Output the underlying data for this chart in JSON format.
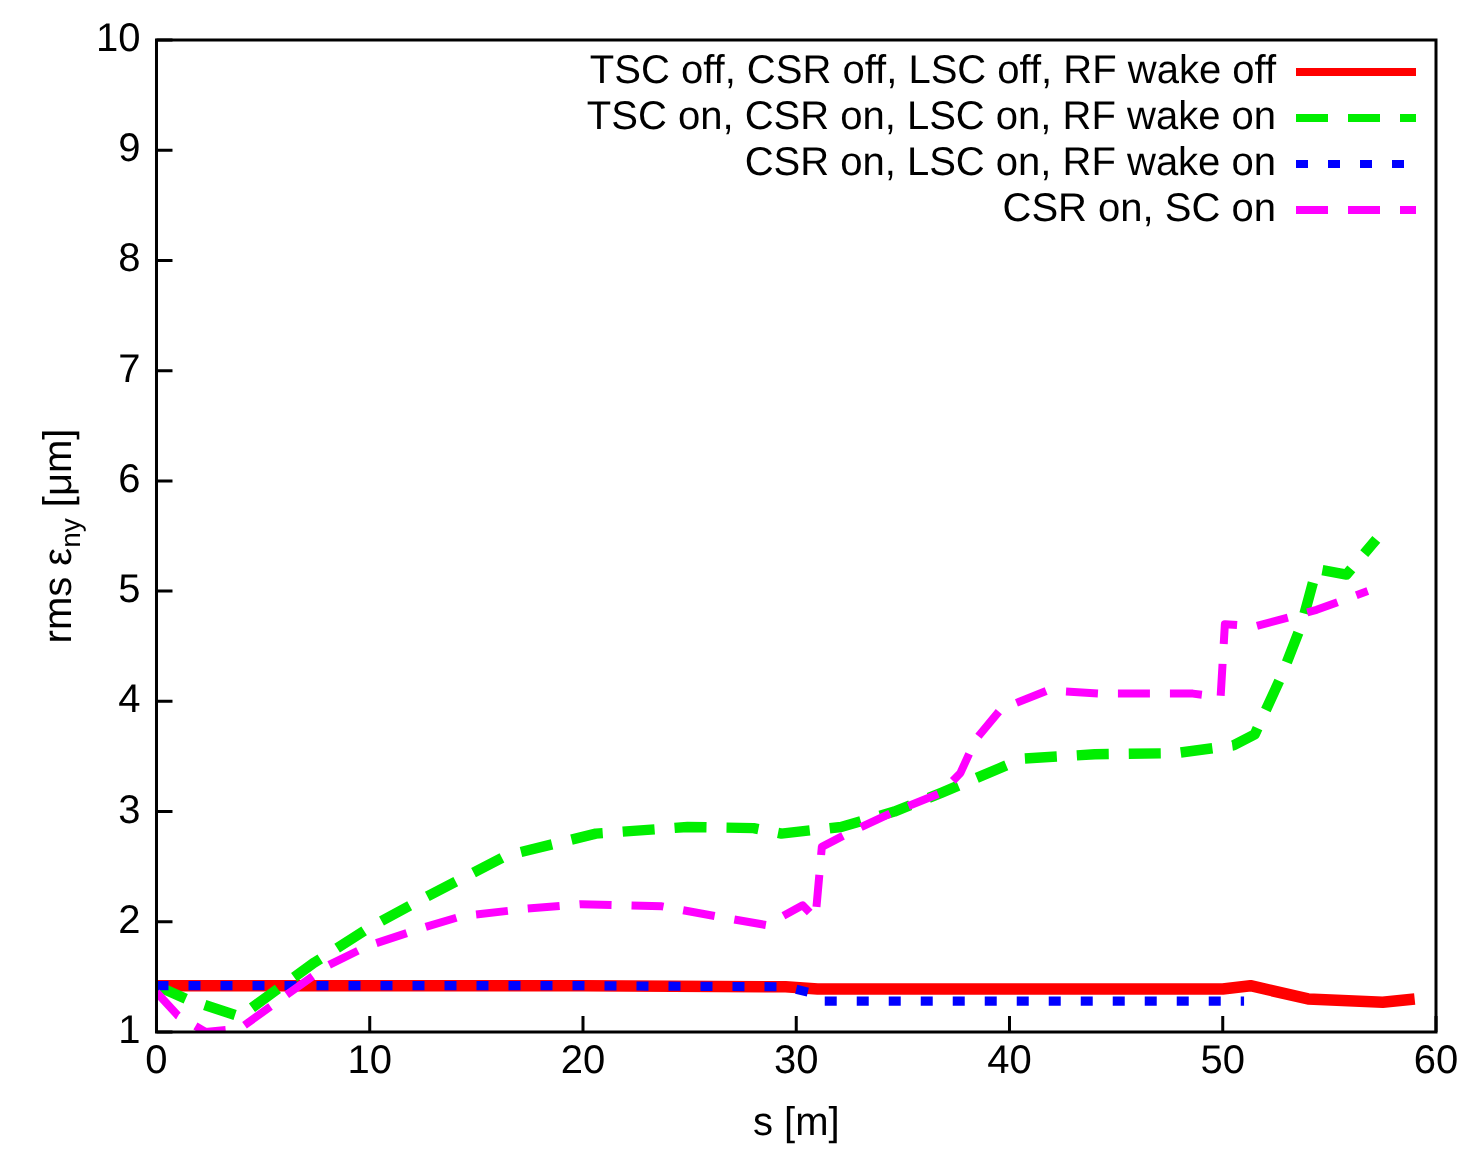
{
  "chart_data": {
    "type": "line",
    "xlabel": "s [m]",
    "ylabel": "rms ε$_{ny}$ [μm]",
    "xlim": [
      0,
      60
    ],
    "xticks": [
      0,
      10,
      20,
      30,
      40,
      50,
      60
    ],
    "ylim": [
      1,
      10
    ],
    "yticks": [
      1,
      2,
      3,
      4,
      5,
      6,
      7,
      8,
      9,
      10
    ],
    "grid": false,
    "legend": "top right",
    "marker": "none",
    "series": [
      {
        "name": "TSC off, CSR off, LSC off, RF wake off",
        "color": "#ff0000",
        "line_style": "solid",
        "x": [
          0,
          10,
          20,
          29.5,
          31,
          40,
          50,
          51.3,
          54,
          57.5,
          59
        ],
        "values": [
          1.42,
          1.42,
          1.42,
          1.41,
          1.39,
          1.39,
          1.39,
          1.42,
          1.3,
          1.27,
          1.3
        ]
      },
      {
        "name": "TSC on, CSR on, LSC on, RF wake on",
        "color": "#00ee00",
        "line_style": "dashed",
        "x": [
          0,
          1.4,
          3.9,
          7.4,
          10,
          12.4,
          16.4,
          20.6,
          24.9,
          28,
          29.3,
          32.1,
          34.6,
          36.8,
          40.6,
          44,
          47.8,
          50.5,
          51.5,
          52.8,
          53.7,
          54.4,
          55.8,
          57.2
        ],
        "values": [
          1.42,
          1.3,
          1.14,
          1.63,
          1.95,
          2.2,
          2.6,
          2.8,
          2.86,
          2.85,
          2.8,
          2.86,
          3.0,
          3.17,
          3.48,
          3.52,
          3.53,
          3.6,
          3.7,
          4.25,
          4.7,
          5.2,
          5.15,
          5.47
        ]
      },
      {
        "name": "CSR on, LSC on, RF wake on",
        "color": "#0000ff",
        "line_style": "dotted",
        "x": [
          0,
          10,
          20,
          29.5,
          30.8,
          31.2,
          40,
          51
        ],
        "values": [
          1.42,
          1.42,
          1.42,
          1.41,
          1.35,
          1.28,
          1.28,
          1.28
        ]
      },
      {
        "name": "CSR on, SC on",
        "color": "#ff00ff",
        "line_style": "dashed",
        "x": [
          0,
          1,
          2.3,
          3.9,
          8,
          9.9,
          12.4,
          14.3,
          17.4,
          19.9,
          23.7,
          26.8,
          28.6,
          30.3,
          30.9,
          31.2,
          32.4,
          34.6,
          36.8,
          37.7,
          38.4,
          39.6,
          41.8,
          44.3,
          48.6,
          49.9,
          50.1,
          51.5,
          54.4,
          56.8
        ],
        "values": [
          1.36,
          1.15,
          1.0,
          1.03,
          1.6,
          1.78,
          1.94,
          2.05,
          2.12,
          2.16,
          2.14,
          2.03,
          1.97,
          2.15,
          2.03,
          2.68,
          2.8,
          3.0,
          3.17,
          3.35,
          3.65,
          3.93,
          4.1,
          4.07,
          4.07,
          4.04,
          4.7,
          4.68,
          4.83,
          5.0
        ]
      }
    ]
  }
}
